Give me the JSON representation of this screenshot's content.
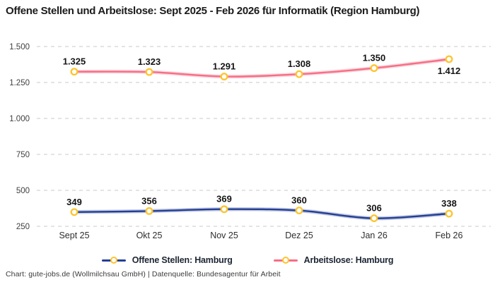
{
  "title": "Offene Stellen und Arbeitslose: Sept 2025 - Feb 2026 für Informatik (Region Hamburg)",
  "footer": "Chart: gute-jobs.de (Wollmilchsau GmbH) | Datenquelle: Bundesagentur für Arbeit",
  "colors": {
    "open_positions": "#233e94",
    "unemployed": "#f66e86",
    "marker_ring": "#fdc42c",
    "marker_fill": "#ffffff",
    "grid": "#c9c9c9",
    "tick_text": "#3f3f3f",
    "category_text": "#2e2e2e",
    "data_label": "#141414"
  },
  "chart_data": {
    "type": "line",
    "title": "Offene Stellen und Arbeitslose: Sept 2025 - Feb 2026 für Informatik (Region Hamburg)",
    "categories": [
      "Sept 25",
      "Okt 25",
      "Nov 25",
      "Dez 25",
      "Jan 26",
      "Feb 26"
    ],
    "ylim": [
      250,
      1500
    ],
    "y_ticks": [
      {
        "value": 1500,
        "label": "1.500"
      },
      {
        "value": 1250,
        "label": "1.250"
      },
      {
        "value": 1000,
        "label": "1.000"
      },
      {
        "value": 750,
        "label": "750"
      },
      {
        "value": 500,
        "label": "500"
      },
      {
        "value": 250,
        "label": "250"
      }
    ],
    "grid": "horizontal-dashed",
    "legend_position": "bottom",
    "series": [
      {
        "name": "Offene Stellen: Hamburg",
        "color_key": "open_positions",
        "values": [
          349,
          356,
          369,
          360,
          306,
          338
        ],
        "labels": [
          "349",
          "356",
          "369",
          "360",
          "306",
          "338"
        ],
        "label_positions": [
          "above",
          "above",
          "above",
          "above",
          "above",
          "above"
        ]
      },
      {
        "name": "Arbeitslose: Hamburg",
        "color_key": "unemployed",
        "values": [
          1325,
          1323,
          1291,
          1308,
          1350,
          1412
        ],
        "labels": [
          "1.325",
          "1.323",
          "1.291",
          "1.308",
          "1.350",
          "1.412"
        ],
        "label_positions": [
          "above",
          "above",
          "above",
          "above",
          "above",
          "below"
        ]
      }
    ]
  },
  "legend": {
    "items": [
      {
        "label": "Offene Stellen: Hamburg",
        "color_key": "open_positions"
      },
      {
        "label": "Arbeitslose: Hamburg",
        "color_key": "unemployed"
      }
    ]
  }
}
